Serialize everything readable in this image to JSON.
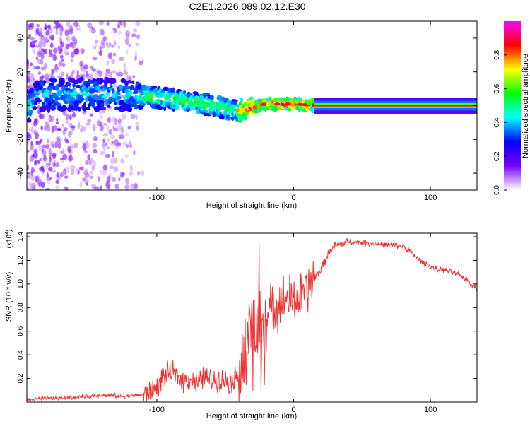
{
  "title": "C2E1.2026.089.02.12.E30",
  "chart_data": [
    {
      "type": "heatmap",
      "xlabel": "Height of straight line (km)",
      "ylabel": "Frequency (Hz)",
      "xlim": [
        -195,
        134
      ],
      "ylim": [
        -50,
        50
      ],
      "xticks": [
        -100,
        0,
        100
      ],
      "yticks": [
        -40,
        -20,
        0,
        20,
        40
      ],
      "colorbar": {
        "label": "Normalized spectral amplitude",
        "range": [
          0.0,
          1.0
        ],
        "ticks": [
          0.0,
          0.2,
          0.4,
          0.6,
          0.8
        ],
        "colors": [
          "#ffffff",
          "#7a00ff",
          "#0000ff",
          "#00ffff",
          "#00ff00",
          "#ffff00",
          "#ff0000",
          "#ff00ff"
        ]
      },
      "ridge": [
        {
          "x": -190,
          "freq": 6
        },
        {
          "x": -150,
          "freq": 7
        },
        {
          "x": -120,
          "freq": 6
        },
        {
          "x": -100,
          "freq": 5
        },
        {
          "x": -80,
          "freq": 3
        },
        {
          "x": -60,
          "freq": 0
        },
        {
          "x": -40,
          "freq": -3
        },
        {
          "x": -20,
          "freq": 1
        },
        {
          "x": 0,
          "freq": 1
        },
        {
          "x": 20,
          "freq": 0
        },
        {
          "x": 134,
          "freq": 0
        }
      ]
    },
    {
      "type": "line",
      "xlabel": "Height of straight line (km)",
      "ylabel": "SNR (10 * v/v)",
      "y_multiplier_label": "(x10",
      "y_multiplier_exp": "4",
      "y_multiplier_close": ")",
      "xlim": [
        -195,
        134
      ],
      "ylim": [
        0,
        1.43
      ],
      "xticks": [
        -100,
        0,
        100
      ],
      "yticks": [
        0.2,
        0.4,
        0.6,
        0.8,
        1.0,
        1.2,
        1.4
      ],
      "ytick_labels": [
        "0.2",
        "0.4",
        "0.6",
        "0.8",
        "1.0",
        "1.2",
        "1.4"
      ],
      "line_color": "#ee3333",
      "series": [
        {
          "name": "SNR",
          "x": [
            -195,
            -180,
            -160,
            -140,
            -125,
            -110,
            -100,
            -95,
            -90,
            -85,
            -80,
            -75,
            -70,
            -65,
            -60,
            -55,
            -50,
            -45,
            -40,
            -35,
            -32,
            -30,
            -28,
            -25,
            -22,
            -20,
            -15,
            -10,
            -5,
            0,
            5,
            10,
            15,
            20,
            25,
            30,
            40,
            50,
            60,
            70,
            80,
            85,
            90,
            95,
            100,
            105,
            110,
            115,
            120,
            125,
            130,
            134
          ],
          "y": [
            0.02,
            0.03,
            0.04,
            0.06,
            0.05,
            0.06,
            0.12,
            0.22,
            0.25,
            0.22,
            0.18,
            0.2,
            0.15,
            0.22,
            0.18,
            0.2,
            0.18,
            0.17,
            0.25,
            0.35,
            0.55,
            0.7,
            0.6,
            0.68,
            0.75,
            0.72,
            0.8,
            0.85,
            0.88,
            0.85,
            0.88,
            0.95,
            1.05,
            1.12,
            1.25,
            1.32,
            1.36,
            1.35,
            1.34,
            1.33,
            1.32,
            1.28,
            1.22,
            1.18,
            1.15,
            1.12,
            1.12,
            1.1,
            1.08,
            1.05,
            1.0,
            0.96
          ]
        }
      ]
    }
  ]
}
